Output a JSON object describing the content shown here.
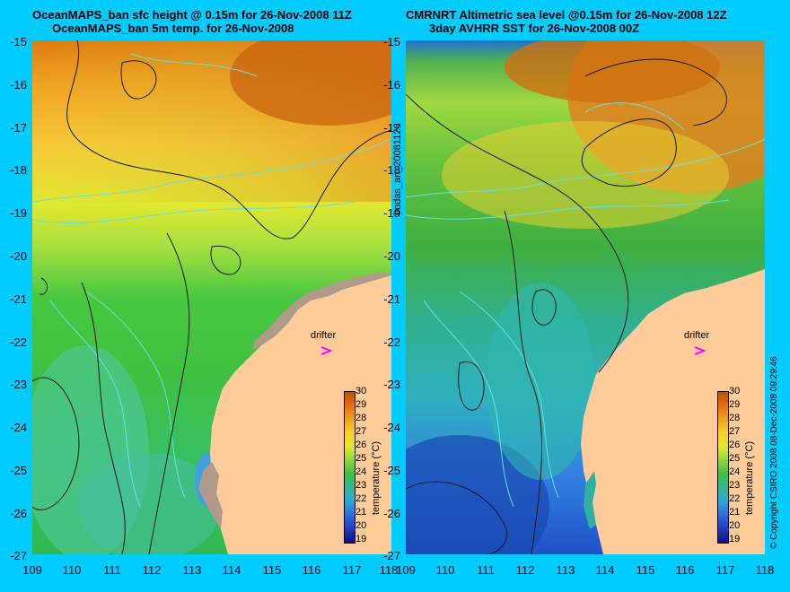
{
  "left_panel": {
    "title_line1": "OceanMAPS_ban sfc height @ 0.15m for 26-Nov-2008 11Z",
    "title_line2": "OceanMAPS_ban 5m temp. for 26-Nov-2008",
    "drifter_label": "drifter",
    "colorbar_title": "temperature (°C)"
  },
  "right_panel": {
    "title_line1": "CMRNRT Altimetric sea level  @0.15m  for 26-Nov-2008 12Z",
    "title_line2": "3day AVHRR SST for 26-Nov-2008 00Z",
    "drifter_label": "drifter",
    "colorbar_title": "temperature (°C)"
  },
  "middle_label": "bodas_an_20081126",
  "copyright": "© Copyright CSIRO 2008   08-Dec-2008 09:29:46",
  "y_ticks": [
    "-15",
    "-16",
    "-17",
    "-18",
    "-19",
    "-20",
    "-21",
    "-22",
    "-23",
    "-24",
    "-25",
    "-26",
    "-27"
  ],
  "x_ticks": [
    "109",
    "110",
    "111",
    "112",
    "113",
    "114",
    "115",
    "116",
    "117",
    "118"
  ],
  "colorbar_ticks": [
    "30",
    "29",
    "28",
    "27",
    "26",
    "25",
    "24",
    "23",
    "22",
    "21",
    "20",
    "19"
  ],
  "colors": {
    "background": "#00ccff",
    "land": "#ffcc99",
    "coast_fill": "#b09a8a",
    "contour": "#1a1a1a",
    "isobath": "#66e0e0",
    "drifter_marker": "#ff00ff"
  },
  "map_data": {
    "lon_range": [
      109,
      118
    ],
    "lat_range": [
      -27,
      -15
    ],
    "drifter_position": {
      "lon": 116.55,
      "lat": -22.0
    }
  }
}
